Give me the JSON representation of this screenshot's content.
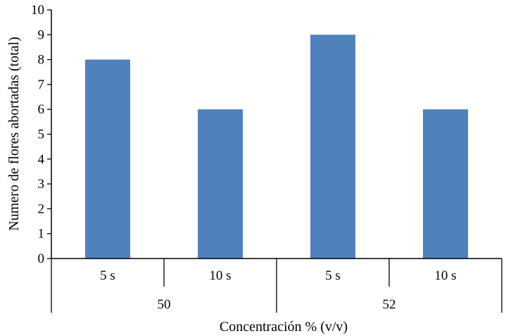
{
  "chart_data": {
    "type": "bar",
    "categories": [
      {
        "label": "5 s",
        "group": "50"
      },
      {
        "label": "10 s",
        "group": "50"
      },
      {
        "label": "5 s",
        "group": "52"
      },
      {
        "label": "10 s",
        "group": "52"
      }
    ],
    "groups": [
      "50",
      "52"
    ],
    "values": [
      8,
      6,
      9,
      6
    ],
    "xlabel": "Concentración % (v/v)",
    "ylabel": "Numero de flores abortadas (total)",
    "ylim": [
      0,
      10
    ],
    "yticks": [
      "0",
      "1",
      "2",
      "3",
      "4",
      "5",
      "6",
      "7",
      "8",
      "9",
      "10"
    ],
    "grid": false,
    "bar_color": "#4f81bd"
  }
}
